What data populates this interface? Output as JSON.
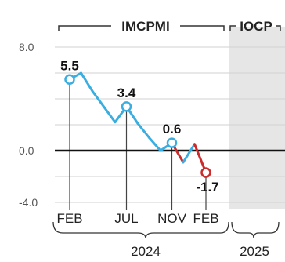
{
  "chart_data": {
    "type": "line",
    "ylim": [
      -4.0,
      8.0
    ],
    "y_ticks": [
      "8.0",
      "0.0",
      "-4.0"
    ],
    "y_tick_values": [
      8.0,
      0.0,
      -4.0
    ],
    "x_tick_labels": [
      "FEB",
      "JUL",
      "NOV",
      "FEB"
    ],
    "x_tick_index": [
      0,
      5,
      9,
      12
    ],
    "year_labels": [
      "2024",
      "2025"
    ],
    "section_labels": [
      "IMCPMI",
      "IOCP"
    ],
    "grid": true,
    "series": [
      {
        "values": [
          5.5,
          6.0,
          4.6,
          3.4,
          2.2,
          3.4,
          2.1,
          1.0,
          0.0,
          0.6,
          -0.9,
          0.5,
          -1.7
        ]
      }
    ],
    "colors": {
      "rise_or_flat": "#3aaee0",
      "decline_after": "#cc2b2b",
      "forecast_shade": "#e6e6e6",
      "zero_line": "#111111"
    },
    "annotations": [
      {
        "index": 0,
        "text": "5.5"
      },
      {
        "index": 5,
        "text": "3.4"
      },
      {
        "index": 9,
        "text": "0.6"
      },
      {
        "index": 12,
        "text": "-1.7"
      }
    ]
  }
}
